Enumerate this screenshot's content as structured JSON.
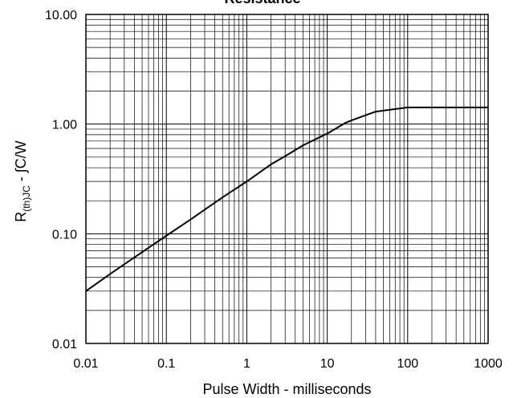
{
  "chart_data": {
    "type": "line",
    "title": "Resistance",
    "xlabel": "Pulse Width - milliseconds",
    "ylabel": {
      "main": "R",
      "subscript": "(th)JC",
      "rest": " - ∫C/W"
    },
    "x_scale": "log",
    "y_scale": "log",
    "xlim": [
      0.01,
      1000
    ],
    "ylim": [
      0.01,
      10
    ],
    "x_ticks": [
      "0.01",
      "0.1",
      "1",
      "10",
      "100",
      "1000"
    ],
    "y_ticks": [
      "0.01",
      "0.10",
      "1.00",
      "10.00"
    ],
    "grid": true,
    "legend": "none",
    "series": [
      {
        "x": [
          0.01,
          0.02,
          0.05,
          0.1,
          0.2,
          0.5,
          1,
          2,
          3,
          5,
          10,
          17,
          20,
          40,
          100,
          1000
        ],
        "y": [
          0.03,
          0.043,
          0.068,
          0.096,
          0.135,
          0.215,
          0.3,
          0.43,
          0.51,
          0.64,
          0.82,
          1.03,
          1.08,
          1.3,
          1.42,
          1.42
        ],
        "color": "#000000"
      }
    ]
  }
}
